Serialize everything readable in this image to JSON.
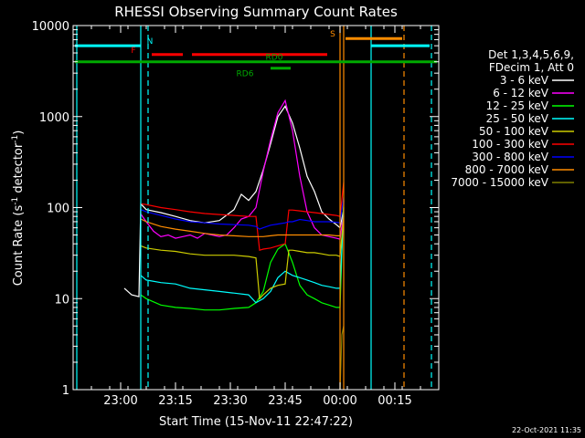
{
  "chart_data": {
    "type": "line",
    "title": "RHESSI Observing Summary Count Rates",
    "xlabel": "Start Time (15-Nov-11 22:47:22)",
    "ylabel_main": "Count Rate (s",
    "ylabel_sup1": "-1",
    "ylabel_mid": " detector",
    "ylabel_sup2": "-1",
    "ylabel_end": ")",
    "y_scale": "log",
    "ylim": [
      1,
      10000
    ],
    "xlim_minutes": [
      0,
      100
    ],
    "x_ticks": [
      {
        "min": 13,
        "label": "23:00"
      },
      {
        "min": 28,
        "label": "23:15"
      },
      {
        "min": 43,
        "label": "23:30"
      },
      {
        "min": 58,
        "label": "23:45"
      },
      {
        "min": 73,
        "label": "00:00"
      },
      {
        "min": 88,
        "label": "00:15"
      }
    ],
    "y_ticks": [
      {
        "value": 1,
        "label": "1"
      },
      {
        "value": 10,
        "label": "10"
      },
      {
        "value": 100,
        "label": "100"
      },
      {
        "value": 1000,
        "label": "1000"
      },
      {
        "value": 10000,
        "label": "10000"
      }
    ],
    "legend": {
      "position": "right",
      "header": [
        "Det 1,3,4,5,6,9,",
        "FDecim 1, Att 0"
      ],
      "entries": [
        {
          "label": "3 - 6 keV",
          "color": "#ffffff"
        },
        {
          "label": "6 - 12 keV",
          "color": "#ff00ff"
        },
        {
          "label": "12 - 25 keV",
          "color": "#00ff00"
        },
        {
          "label": "25 - 50 keV",
          "color": "#00ffff"
        },
        {
          "label": "50 - 100 keV",
          "color": "#cccc00"
        },
        {
          "label": "100 - 300 keV",
          "color": "#ff0000"
        },
        {
          "label": "300 - 800 keV",
          "color": "#0000ff"
        },
        {
          "label": "800 - 7000 keV",
          "color": "#ff8c00"
        },
        {
          "label": "7000 - 15000 keV",
          "color": "#808000"
        }
      ]
    },
    "series": [
      {
        "name": "3 - 6 keV",
        "color": "#ffffff",
        "points": [
          [
            14,
            13
          ],
          [
            16,
            11
          ],
          [
            18,
            10.5
          ],
          [
            18.5,
            110
          ],
          [
            20,
            95
          ],
          [
            24,
            88
          ],
          [
            28,
            80
          ],
          [
            32,
            72
          ],
          [
            36,
            68
          ],
          [
            40,
            72
          ],
          [
            44,
            95
          ],
          [
            46,
            140
          ],
          [
            48,
            120
          ],
          [
            50,
            150
          ],
          [
            52,
            260
          ],
          [
            54,
            500
          ],
          [
            56,
            1000
          ],
          [
            58,
            1300
          ],
          [
            60,
            850
          ],
          [
            62,
            450
          ],
          [
            64,
            220
          ],
          [
            66,
            150
          ],
          [
            68,
            90
          ],
          [
            70,
            75
          ],
          [
            72,
            65
          ],
          [
            73,
            60
          ],
          [
            74,
            95
          ]
        ]
      },
      {
        "name": "6 - 12 keV",
        "color": "#ff00ff",
        "points": [
          [
            18.5,
            85
          ],
          [
            20,
            70
          ],
          [
            22,
            55
          ],
          [
            24,
            48
          ],
          [
            26,
            50
          ],
          [
            28,
            46
          ],
          [
            30,
            48
          ],
          [
            32,
            50
          ],
          [
            34,
            46
          ],
          [
            36,
            52
          ],
          [
            38,
            50
          ],
          [
            40,
            48
          ],
          [
            42,
            50
          ],
          [
            44,
            60
          ],
          [
            46,
            75
          ],
          [
            48,
            80
          ],
          [
            50,
            100
          ],
          [
            52,
            250
          ],
          [
            54,
            550
          ],
          [
            56,
            1100
          ],
          [
            58,
            1500
          ],
          [
            60,
            700
          ],
          [
            62,
            220
          ],
          [
            64,
            90
          ],
          [
            66,
            60
          ],
          [
            68,
            50
          ],
          [
            70,
            48
          ],
          [
            72,
            46
          ],
          [
            73,
            45
          ],
          [
            74,
            90
          ]
        ]
      },
      {
        "name": "12 - 25 keV",
        "color": "#00ff00",
        "points": [
          [
            18.5,
            11
          ],
          [
            20,
            10
          ],
          [
            24,
            8.5
          ],
          [
            28,
            8
          ],
          [
            32,
            7.8
          ],
          [
            36,
            7.5
          ],
          [
            40,
            7.5
          ],
          [
            44,
            7.8
          ],
          [
            48,
            8
          ],
          [
            50,
            9
          ],
          [
            52,
            12
          ],
          [
            54,
            25
          ],
          [
            56,
            35
          ],
          [
            58,
            40
          ],
          [
            60,
            25
          ],
          [
            62,
            14
          ],
          [
            64,
            11
          ],
          [
            66,
            10
          ],
          [
            68,
            9
          ],
          [
            70,
            8.5
          ],
          [
            72,
            8
          ],
          [
            73,
            8
          ],
          [
            74,
            120
          ]
        ]
      },
      {
        "name": "25 - 50 keV",
        "color": "#00ffff",
        "points": [
          [
            18.5,
            18
          ],
          [
            20,
            16
          ],
          [
            24,
            15
          ],
          [
            28,
            14.5
          ],
          [
            32,
            13
          ],
          [
            36,
            12.5
          ],
          [
            40,
            12
          ],
          [
            44,
            11.5
          ],
          [
            48,
            11
          ],
          [
            50,
            9
          ],
          [
            52,
            10
          ],
          [
            54,
            12
          ],
          [
            56,
            17
          ],
          [
            58,
            20
          ],
          [
            60,
            18
          ],
          [
            62,
            17
          ],
          [
            64,
            16
          ],
          [
            66,
            15
          ],
          [
            68,
            14
          ],
          [
            70,
            13.5
          ],
          [
            72,
            13
          ],
          [
            73,
            13
          ],
          [
            74,
            100
          ]
        ]
      },
      {
        "name": "50 - 100 keV",
        "color": "#cccc00",
        "points": [
          [
            18.5,
            38
          ],
          [
            20,
            36
          ],
          [
            24,
            34
          ],
          [
            28,
            33
          ],
          [
            32,
            31
          ],
          [
            36,
            30
          ],
          [
            40,
            30
          ],
          [
            44,
            30
          ],
          [
            48,
            29
          ],
          [
            50,
            28
          ],
          [
            51,
            10
          ],
          [
            52,
            11
          ],
          [
            54,
            13
          ],
          [
            56,
            14
          ],
          [
            58,
            14.5
          ],
          [
            59,
            34
          ],
          [
            60,
            34
          ],
          [
            62,
            33
          ],
          [
            64,
            32
          ],
          [
            66,
            32
          ],
          [
            68,
            31
          ],
          [
            70,
            30
          ],
          [
            72,
            30
          ],
          [
            73,
            29
          ],
          [
            74,
            80
          ]
        ]
      },
      {
        "name": "100 - 300 keV",
        "color": "#ff0000",
        "points": [
          [
            18.5,
            110
          ],
          [
            20,
            108
          ],
          [
            24,
            100
          ],
          [
            28,
            95
          ],
          [
            32,
            90
          ],
          [
            36,
            86
          ],
          [
            40,
            84
          ],
          [
            44,
            82
          ],
          [
            48,
            80
          ],
          [
            50,
            80
          ],
          [
            51,
            34
          ],
          [
            52,
            35
          ],
          [
            54,
            36
          ],
          [
            56,
            38
          ],
          [
            58,
            40
          ],
          [
            59,
            94
          ],
          [
            60,
            94
          ],
          [
            62,
            92
          ],
          [
            64,
            90
          ],
          [
            66,
            88
          ],
          [
            68,
            86
          ],
          [
            70,
            84
          ],
          [
            72,
            82
          ],
          [
            73,
            80
          ],
          [
            74,
            190
          ]
        ]
      },
      {
        "name": "300 - 800 keV",
        "color": "#0000ff",
        "points": [
          [
            18.5,
            95
          ],
          [
            20,
            90
          ],
          [
            24,
            82
          ],
          [
            28,
            75
          ],
          [
            32,
            70
          ],
          [
            36,
            68
          ],
          [
            40,
            66
          ],
          [
            44,
            65
          ],
          [
            48,
            64
          ],
          [
            50,
            62
          ],
          [
            51,
            58
          ],
          [
            52,
            60
          ],
          [
            54,
            64
          ],
          [
            56,
            66
          ],
          [
            58,
            68
          ],
          [
            59,
            70
          ],
          [
            60,
            70
          ],
          [
            62,
            74
          ],
          [
            64,
            72
          ],
          [
            66,
            70
          ],
          [
            68,
            70
          ],
          [
            70,
            70
          ],
          [
            72,
            69
          ],
          [
            73,
            68
          ],
          [
            74,
            130
          ]
        ]
      },
      {
        "name": "800 - 7000 keV",
        "color": "#ff8c00",
        "points": [
          [
            18.5,
            75
          ],
          [
            20,
            70
          ],
          [
            24,
            62
          ],
          [
            28,
            58
          ],
          [
            32,
            55
          ],
          [
            36,
            52
          ],
          [
            40,
            50
          ],
          [
            44,
            49
          ],
          [
            48,
            48
          ],
          [
            50,
            48
          ],
          [
            52,
            48
          ],
          [
            54,
            49
          ],
          [
            56,
            50
          ],
          [
            58,
            50
          ],
          [
            60,
            50
          ],
          [
            62,
            50
          ],
          [
            64,
            50
          ],
          [
            66,
            50
          ],
          [
            68,
            50
          ],
          [
            70,
            50
          ],
          [
            72,
            49
          ],
          [
            73,
            49
          ]
        ]
      },
      {
        "name": "7000 - 15000 keV",
        "color": "#808000",
        "points": [
          [
            73,
            1
          ],
          [
            73.5,
            4
          ],
          [
            74,
            5
          ]
        ]
      }
    ],
    "vertical_lines": [
      {
        "min": 1,
        "color": "#00ffff",
        "style": "solid"
      },
      {
        "min": 18.5,
        "color": "#00ffff",
        "style": "solid"
      },
      {
        "min": 20.5,
        "color": "#00ffff",
        "style": "dashed"
      },
      {
        "min": 73,
        "color": "#ff8c00",
        "style": "solid"
      },
      {
        "min": 74,
        "color": "#ff8c00",
        "style": "solid"
      },
      {
        "min": 81.5,
        "color": "#00ffff",
        "style": "solid"
      },
      {
        "min": 90.5,
        "color": "#ff8c00",
        "style": "dashed"
      },
      {
        "min": 98,
        "color": "#00ffff",
        "style": "dashed"
      }
    ],
    "flags": [
      {
        "label": "N",
        "color": "#00ffff",
        "segments": [
          [
            0.5,
            18.5
          ],
          [
            81.5,
            97.5
          ]
        ],
        "level": 6000,
        "label_min": 21
      },
      {
        "label": "F",
        "color": "#ff0000",
        "segments": [
          [
            21.5,
            30
          ],
          [
            32.5,
            69.5
          ]
        ],
        "level": 4800,
        "label_min": 16.5
      },
      {
        "label": "S",
        "color": "#ff8c00",
        "segments": [
          [
            74.5,
            90
          ]
        ],
        "level": 7200,
        "label_min": 71
      },
      {
        "label": "RD0",
        "color": "#00aa00",
        "segments": [
          [
            0.5,
            99.5
          ]
        ],
        "level": 4000,
        "label_min": 55
      },
      {
        "label": "RD6",
        "color": "#00aa00",
        "segments": [
          [
            54,
            59.5
          ]
        ],
        "level": 3400,
        "label_min": 47
      }
    ],
    "grid": false
  },
  "footer": {
    "timestamp": "22-Oct-2021 11:35"
  }
}
